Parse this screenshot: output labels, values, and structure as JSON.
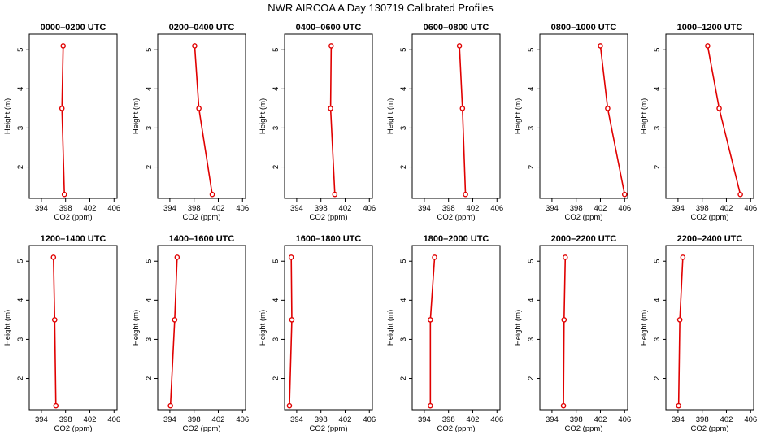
{
  "figure": {
    "title": "NWR AIRCOA A  Day 130719  Calibrated Profiles"
  },
  "chart_data": [
    {
      "type": "line",
      "title": "0000–0200 UTC",
      "xlabel": "CO2 (ppm)",
      "ylabel": "Height (m)",
      "xlim": [
        392,
        406.5
      ],
      "ylim": [
        1.2,
        5.4
      ],
      "xticks": [
        394,
        398,
        402,
        406
      ],
      "yticks": [
        2,
        3,
        4,
        5
      ],
      "x": [
        397.8,
        397.4,
        397.6
      ],
      "y": [
        1.3,
        3.5,
        5.1
      ],
      "color": "#e00000"
    },
    {
      "type": "line",
      "title": "0200–0400 UTC",
      "xlabel": "CO2 (ppm)",
      "ylabel": "Height (m)",
      "xlim": [
        392,
        406.5
      ],
      "ylim": [
        1.2,
        5.4
      ],
      "xticks": [
        394,
        398,
        402,
        406
      ],
      "yticks": [
        2,
        3,
        4,
        5
      ],
      "x": [
        401.0,
        398.8,
        398.1
      ],
      "y": [
        1.3,
        3.5,
        5.1
      ],
      "color": "#e00000"
    },
    {
      "type": "line",
      "title": "0400–0600 UTC",
      "xlabel": "CO2 (ppm)",
      "ylabel": "Height (m)",
      "xlim": [
        392,
        406.5
      ],
      "ylim": [
        1.2,
        5.4
      ],
      "xticks": [
        394,
        398,
        402,
        406
      ],
      "yticks": [
        2,
        3,
        4,
        5
      ],
      "x": [
        400.3,
        399.6,
        399.7
      ],
      "y": [
        1.3,
        3.5,
        5.1
      ],
      "color": "#e00000"
    },
    {
      "type": "line",
      "title": "0600–0800 UTC",
      "xlabel": "CO2 (ppm)",
      "ylabel": "Height (m)",
      "xlim": [
        392,
        406.5
      ],
      "ylim": [
        1.2,
        5.4
      ],
      "xticks": [
        394,
        398,
        402,
        406
      ],
      "yticks": [
        2,
        3,
        4,
        5
      ],
      "x": [
        400.8,
        400.3,
        399.8
      ],
      "y": [
        1.3,
        3.5,
        5.1
      ],
      "color": "#e00000"
    },
    {
      "type": "line",
      "title": "0800–1000 UTC",
      "xlabel": "CO2 (ppm)",
      "ylabel": "Height (m)",
      "xlim": [
        392,
        406.5
      ],
      "ylim": [
        1.2,
        5.4
      ],
      "xticks": [
        394,
        398,
        402,
        406
      ],
      "yticks": [
        2,
        3,
        4,
        5
      ],
      "x": [
        406.0,
        403.2,
        402.0
      ],
      "y": [
        1.3,
        3.5,
        5.1
      ],
      "color": "#e00000"
    },
    {
      "type": "line",
      "title": "1000–1200 UTC",
      "xlabel": "CO2 (ppm)",
      "ylabel": "Height (m)",
      "xlim": [
        392,
        406.5
      ],
      "ylim": [
        1.2,
        5.4
      ],
      "xticks": [
        394,
        398,
        402,
        406
      ],
      "yticks": [
        2,
        3,
        4,
        5
      ],
      "x": [
        404.3,
        400.8,
        398.9
      ],
      "y": [
        1.3,
        3.5,
        5.1
      ],
      "color": "#e00000"
    },
    {
      "type": "line",
      "title": "1200–1400 UTC",
      "xlabel": "CO2 (ppm)",
      "ylabel": "Height (m)",
      "xlim": [
        392,
        406.5
      ],
      "ylim": [
        1.2,
        5.4
      ],
      "xticks": [
        394,
        398,
        402,
        406
      ],
      "yticks": [
        2,
        3,
        4,
        5
      ],
      "x": [
        396.4,
        396.2,
        396.0
      ],
      "y": [
        1.3,
        3.5,
        5.1
      ],
      "color": "#e00000"
    },
    {
      "type": "line",
      "title": "1400–1600 UTC",
      "xlabel": "CO2 (ppm)",
      "ylabel": "Height (m)",
      "xlim": [
        392,
        406.5
      ],
      "ylim": [
        1.2,
        5.4
      ],
      "xticks": [
        394,
        398,
        402,
        406
      ],
      "yticks": [
        2,
        3,
        4,
        5
      ],
      "x": [
        394.1,
        394.8,
        395.2
      ],
      "y": [
        1.3,
        3.5,
        5.1
      ],
      "color": "#e00000"
    },
    {
      "type": "line",
      "title": "1600–1800 UTC",
      "xlabel": "CO2 (ppm)",
      "ylabel": "Height (m)",
      "xlim": [
        392,
        406.5
      ],
      "ylim": [
        1.2,
        5.4
      ],
      "xticks": [
        394,
        398,
        402,
        406
      ],
      "yticks": [
        2,
        3,
        4,
        5
      ],
      "x": [
        392.8,
        393.2,
        393.1
      ],
      "y": [
        1.3,
        3.5,
        5.1
      ],
      "color": "#e00000"
    },
    {
      "type": "line",
      "title": "1800–2000 UTC",
      "xlabel": "CO2 (ppm)",
      "ylabel": "Height (m)",
      "xlim": [
        392,
        406.5
      ],
      "ylim": [
        1.2,
        5.4
      ],
      "xticks": [
        394,
        398,
        402,
        406
      ],
      "yticks": [
        2,
        3,
        4,
        5
      ],
      "x": [
        395.0,
        395.0,
        395.7
      ],
      "y": [
        1.3,
        3.5,
        5.1
      ],
      "color": "#e00000"
    },
    {
      "type": "line",
      "title": "2000–2200 UTC",
      "xlabel": "CO2 (ppm)",
      "ylabel": "Height (m)",
      "xlim": [
        392,
        406.5
      ],
      "ylim": [
        1.2,
        5.4
      ],
      "xticks": [
        394,
        398,
        402,
        406
      ],
      "yticks": [
        2,
        3,
        4,
        5
      ],
      "x": [
        395.9,
        396.0,
        396.2
      ],
      "y": [
        1.3,
        3.5,
        5.1
      ],
      "color": "#e00000"
    },
    {
      "type": "line",
      "title": "2200–2400 UTC",
      "xlabel": "CO2 (ppm)",
      "ylabel": "Height (m)",
      "xlim": [
        392,
        406.5
      ],
      "ylim": [
        1.2,
        5.4
      ],
      "xticks": [
        394,
        398,
        402,
        406
      ],
      "yticks": [
        2,
        3,
        4,
        5
      ],
      "x": [
        394.1,
        394.3,
        394.8
      ],
      "y": [
        1.3,
        3.5,
        5.1
      ],
      "color": "#e00000"
    }
  ]
}
